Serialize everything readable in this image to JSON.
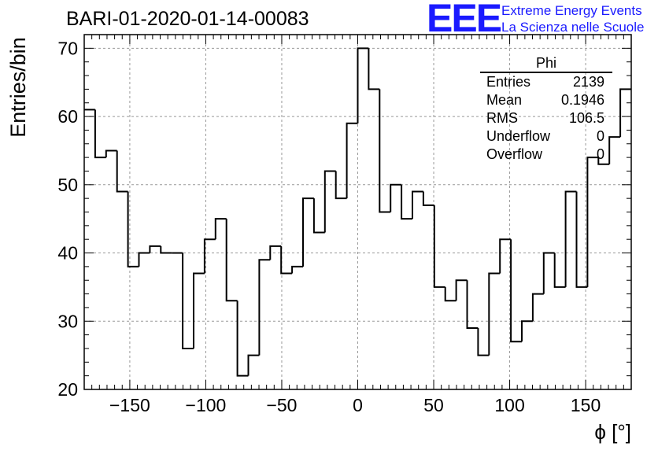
{
  "header": {
    "title": "BARI-01-2020-01-14-00083",
    "logo_text": "EEE",
    "logo_line1": "Extreme Energy Events",
    "logo_line2": "La Scienza nelle Scuole"
  },
  "stats_box": {
    "title": "Phi",
    "rows": [
      {
        "label": "Entries",
        "value": "2139"
      },
      {
        "label": "Mean",
        "value": "0.1946"
      },
      {
        "label": "RMS",
        "value": "106.5"
      },
      {
        "label": "Underflow",
        "value": "0"
      },
      {
        "label": "Overflow",
        "value": "0"
      }
    ]
  },
  "chart_data": {
    "type": "histogram",
    "title": "BARI-01-2020-01-14-00083",
    "xlabel": "ϕ [°]",
    "ylabel": "Entries/bin",
    "xlim": [
      -180,
      180
    ],
    "ylim": [
      20,
      72
    ],
    "bin_width": 7.2,
    "xticks": [
      -150,
      -100,
      -50,
      0,
      50,
      100,
      150
    ],
    "yticks": [
      20,
      30,
      40,
      50,
      60,
      70
    ],
    "grid": true,
    "line_color": "#000000",
    "bin_edges_start": -180,
    "values": [
      61,
      54,
      55,
      49,
      38,
      40,
      41,
      40,
      40,
      26,
      37,
      42,
      45,
      33,
      22,
      25,
      39,
      41,
      37,
      38,
      48,
      43,
      52,
      48,
      59,
      70,
      64,
      46,
      50,
      45,
      49,
      47,
      35,
      33,
      36,
      29,
      25,
      37,
      42,
      27,
      30,
      34,
      40,
      35,
      49,
      35,
      54,
      53,
      57,
      64
    ]
  }
}
